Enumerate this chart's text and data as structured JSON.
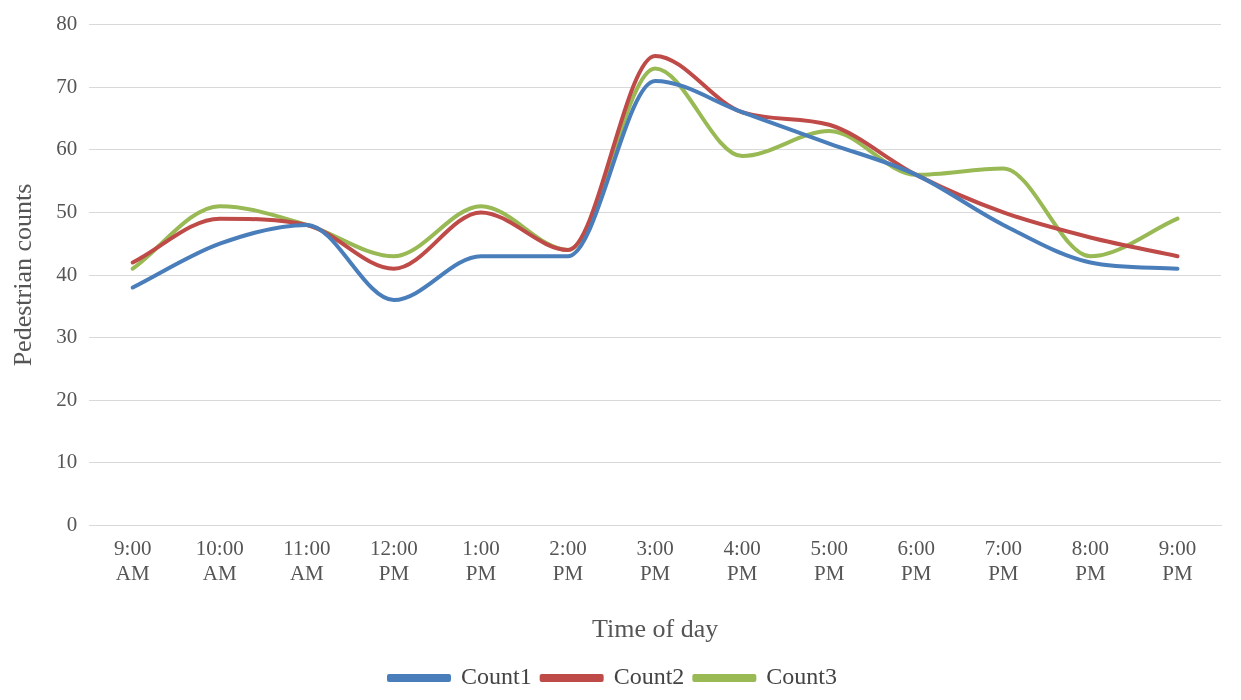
{
  "chart_data": {
    "type": "line",
    "xlabel": "Time of day",
    "ylabel": "Pedestrian counts",
    "categories": [
      "9:00 AM",
      "10:00 AM",
      "11:00 AM",
      "12:00 PM",
      "1:00 PM",
      "2:00 PM",
      "3:00 PM",
      "4:00 PM",
      "5:00 PM",
      "6:00 PM",
      "7:00 PM",
      "8:00 PM",
      "9:00 PM"
    ],
    "series": [
      {
        "name": "Count1",
        "color": "#4a7ebb",
        "values": [
          38,
          45,
          48,
          36,
          43,
          43,
          71,
          66,
          61,
          56,
          48,
          42,
          41
        ]
      },
      {
        "name": "Count2",
        "color": "#be4b48",
        "values": [
          42,
          49,
          48,
          41,
          50,
          44,
          75,
          66,
          64,
          56,
          50,
          46,
          43
        ]
      },
      {
        "name": "Count3",
        "color": "#98b954",
        "values": [
          41,
          51,
          48,
          43,
          51,
          44,
          73,
          59,
          63,
          56,
          57,
          43,
          49
        ]
      }
    ],
    "ylim": [
      0,
      80
    ],
    "yticks": [
      0,
      10,
      20,
      30,
      40,
      50,
      60,
      70,
      80
    ],
    "grid": "y",
    "legend": "bottom",
    "marker": "none",
    "line_style": "solid"
  }
}
